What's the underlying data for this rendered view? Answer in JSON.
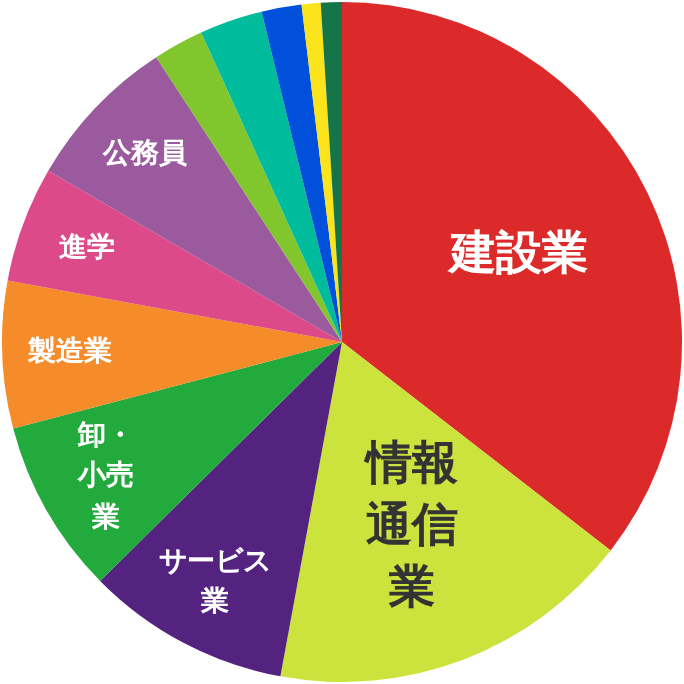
{
  "chart_data": {
    "type": "pie",
    "categories": [
      "建設業",
      "情報通信業",
      "サービス業",
      "卸・小売業",
      "製造業",
      "進学",
      "公務員",
      null,
      null,
      null,
      null,
      null
    ],
    "values": [
      35.5,
      17.4,
      9.7,
      8.3,
      7.0,
      5.5,
      7.4,
      2.4,
      3.0,
      1.9,
      0.9,
      1.0
    ],
    "colors": [
      "#dc2a2a",
      "#cbe33c",
      "#53237f",
      "#22aa3c",
      "#f68b2a",
      "#dc4a89",
      "#9c5a9e",
      "#80c62c",
      "#00bb9c",
      "#0050dc",
      "#fbe41c",
      "#157448"
    ]
  }
}
